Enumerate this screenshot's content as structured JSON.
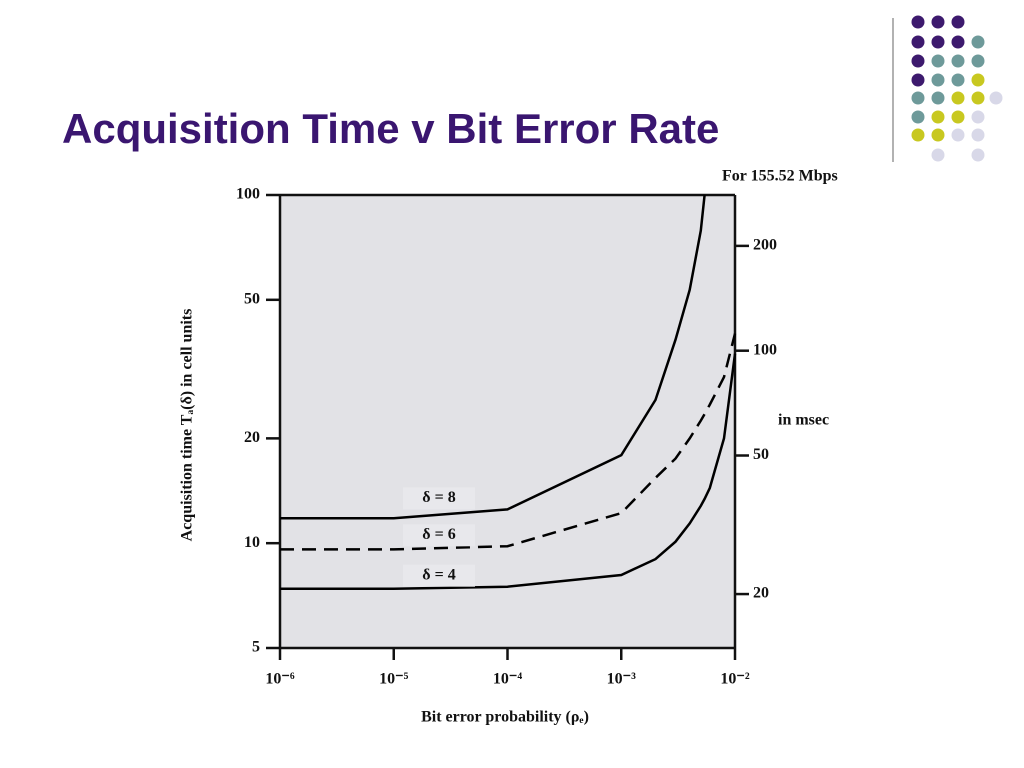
{
  "header": {
    "title": "Acquisition Time v Bit Error Rate"
  },
  "chart_data": {
    "type": "line",
    "x_label": "Bit error probability (ρₑ)",
    "y_label": "Acquisition time Tₐ(δ) in cell units",
    "y2_title": "For 155.52 Mbps",
    "y2_label": "in msec",
    "x_log": true,
    "y_log": true,
    "xlim": [
      1e-06,
      0.01
    ],
    "xticks": [
      {
        "value": 1e-06,
        "label": "10⁻⁶"
      },
      {
        "value": 1e-05,
        "label": "10⁻⁵"
      },
      {
        "value": 0.0001,
        "label": "10⁻⁴"
      },
      {
        "value": 0.001,
        "label": "10⁻³"
      },
      {
        "value": 0.01,
        "label": "10⁻²"
      }
    ],
    "ylim": [
      5,
      100
    ],
    "yticks": [
      5,
      10,
      20,
      50,
      100
    ],
    "y2lim": [
      14,
      280
    ],
    "y2ticks": [
      20,
      50,
      100,
      200
    ],
    "x": [
      1e-06,
      1e-05,
      0.0001,
      0.001,
      0.002,
      0.003,
      0.004,
      0.005,
      0.0054,
      0.006,
      0.008,
      0.01
    ],
    "series": [
      {
        "name": "δ = 8",
        "color": "#000000",
        "dash": false,
        "values": [
          11.8,
          11.8,
          12.5,
          17.9,
          25.8,
          38.4,
          53.4,
          79,
          100,
          null,
          null,
          null
        ]
      },
      {
        "name": "δ = 6",
        "color": "#000000",
        "dash": true,
        "values": [
          9.6,
          9.6,
          9.8,
          12.2,
          15.4,
          17.5,
          20,
          22.5,
          23.5,
          25,
          30,
          40
        ]
      },
      {
        "name": "δ = 4",
        "color": "#000000",
        "dash": false,
        "values": [
          7.4,
          7.4,
          7.5,
          8.1,
          9.0,
          10.1,
          11.4,
          12.8,
          13.4,
          14.4,
          20,
          35
        ]
      }
    ]
  }
}
